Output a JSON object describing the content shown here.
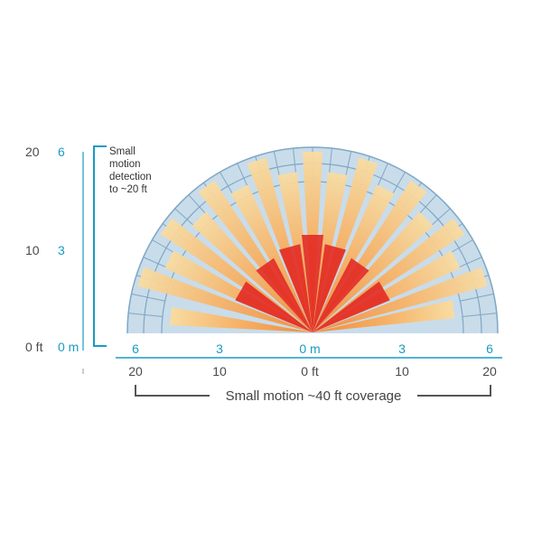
{
  "colors": {
    "teal": "#1a9bc4",
    "dark": "#4a4a4a",
    "arc_fill": "#c9dcea",
    "arc_ring": "#7fa7c4",
    "beam_outer": "#f8dca2",
    "beam_mid": "#f08a3c",
    "beam_inner": "#e32a22"
  },
  "left_axis": {
    "ft_labels": [
      "20",
      "10",
      "0 ft"
    ],
    "m_labels": [
      "6",
      "3",
      "0 m"
    ]
  },
  "bracket_note": {
    "lines": [
      "Small",
      "motion",
      "detection",
      "to ~20 ft"
    ]
  },
  "bottom_axis": {
    "m_labels": [
      "6",
      "3",
      "0 m",
      "3",
      "6"
    ],
    "ft_labels": [
      "20",
      "10",
      "0 ft",
      "10",
      "20"
    ]
  },
  "coverage_label": "Small motion ~40 ft coverage"
}
